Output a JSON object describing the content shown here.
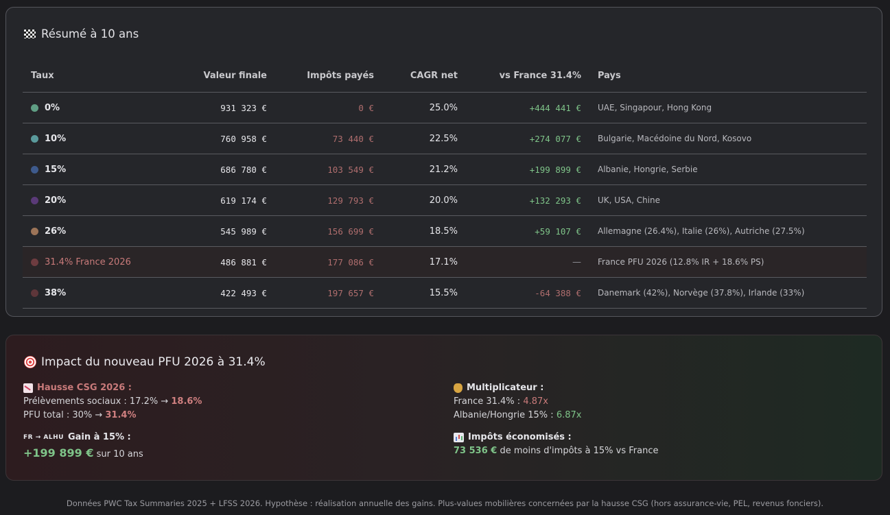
{
  "summary": {
    "title": "Résumé à 10 ans",
    "title_icon": "checkered-flag-icon",
    "headers": {
      "rate": "Taux",
      "final_value": "Valeur finale",
      "taxes_paid": "Impôts payés",
      "cagr": "CAGR net",
      "vs_france": "vs France 31.4%",
      "countries": "Pays"
    },
    "rows": [
      {
        "rate": "0%",
        "color": "#5f9e84",
        "final": "931 323 €",
        "tax": "0 €",
        "cagr": "25.0%",
        "vs": "+444 441 €",
        "vs_sign": "pos",
        "countries": "UAE, Singapour, Hong Kong"
      },
      {
        "rate": "10%",
        "color": "#5a9a9c",
        "final": "760 958 €",
        "tax": "73 440 €",
        "cagr": "22.5%",
        "vs": "+274 077 €",
        "vs_sign": "pos",
        "countries": "Bulgarie, Macédoine du Nord, Kosovo"
      },
      {
        "rate": "15%",
        "color": "#3e5a8c",
        "final": "686 780 €",
        "tax": "103 549 €",
        "cagr": "21.2%",
        "vs": "+199 899 €",
        "vs_sign": "pos",
        "countries": "Albanie, Hongrie, Serbie"
      },
      {
        "rate": "20%",
        "color": "#5a3a78",
        "final": "619 174 €",
        "tax": "129 793 €",
        "cagr": "20.0%",
        "vs": "+132 293 €",
        "vs_sign": "pos",
        "countries": "UK, USA, Chine"
      },
      {
        "rate": "26%",
        "color": "#9c7458",
        "final": "545 989 €",
        "tax": "156 699 €",
        "cagr": "18.5%",
        "vs": "+59 107 €",
        "vs_sign": "pos",
        "countries": "Allemagne (26.4%), Italie (26%), Autriche (27.5%)"
      },
      {
        "rate": "31.4% France 2026",
        "color": "#6e3c40",
        "final": "486 881 €",
        "tax": "177 086 €",
        "cagr": "17.1%",
        "vs": "—",
        "vs_sign": "none",
        "countries": "France PFU 2026 (12.8% IR + 18.6% PS)",
        "highlight": true
      },
      {
        "rate": "38%",
        "color": "#5e363a",
        "final": "422 493 €",
        "tax": "197 657 €",
        "cagr": "15.5%",
        "vs": "-64 388 €",
        "vs_sign": "neg",
        "countries": "Danemark (42%), Norvège (37.8%), Irlande (33%)"
      }
    ]
  },
  "impact": {
    "title": "Impact du nouveau PFU 2026 à 31.4%",
    "title_icon": "target-icon",
    "csg": {
      "title": "Hausse CSG 2026 :",
      "icon": "chart-decreasing-icon",
      "line1_prefix": "Prélèvements sociaux : 17.2% → ",
      "line1_value": "18.6%",
      "line2_prefix": "PFU total : 30% → ",
      "line2_value": "31.4%"
    },
    "gain": {
      "flags_text": "FR → ALHU",
      "title": "Gain à 15% :",
      "value": "+199 899 €",
      "suffix": " sur 10 ans"
    },
    "multiplier": {
      "title": "Multiplicateur :",
      "icon": "money-bag-icon",
      "france_prefix": "France 31.4% : ",
      "france_value": "4.87x",
      "alhu_prefix": "Albanie/Hongrie 15% : ",
      "alhu_value": "6.87x"
    },
    "saved": {
      "title": "Impôts économisés :",
      "icon": "bar-chart-icon",
      "value": "73 536 €",
      "suffix": " de moins d'impôts à 15% vs France"
    }
  },
  "footer": "Données PWC Tax Summaries 2025 + LFSS 2026. Hypothèse : réalisation annuelle des gains. Plus-values mobilières concernées par la hausse CSG (hors assurance-vie, PEL, revenus fonciers)."
}
